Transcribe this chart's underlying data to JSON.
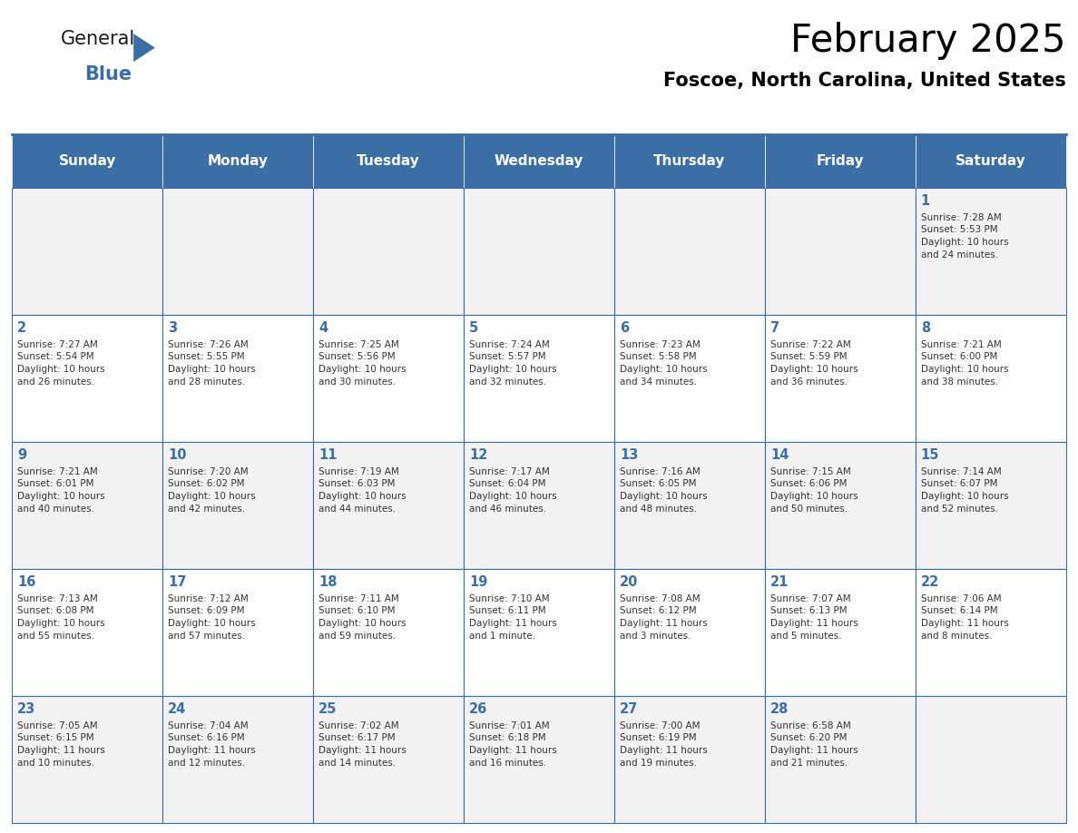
{
  "title": "February 2025",
  "subtitle": "Foscoe, North Carolina, United States",
  "header_bg_color": "#3A6EA5",
  "header_text_color": "#FFFFFF",
  "cell_bg_color_odd": "#F2F2F2",
  "cell_bg_color_even": "#FFFFFF",
  "grid_line_color": "#3A6EA5",
  "day_headers": [
    "Sunday",
    "Monday",
    "Tuesday",
    "Wednesday",
    "Thursday",
    "Friday",
    "Saturday"
  ],
  "title_color": "#000000",
  "subtitle_color": "#000000",
  "day_number_color": "#3A6EA5",
  "cell_text_color": "#333333",
  "weeks": [
    [
      {
        "day": null,
        "sunrise": null,
        "sunset": null,
        "daylight": null
      },
      {
        "day": null,
        "sunrise": null,
        "sunset": null,
        "daylight": null
      },
      {
        "day": null,
        "sunrise": null,
        "sunset": null,
        "daylight": null
      },
      {
        "day": null,
        "sunrise": null,
        "sunset": null,
        "daylight": null
      },
      {
        "day": null,
        "sunrise": null,
        "sunset": null,
        "daylight": null
      },
      {
        "day": null,
        "sunrise": null,
        "sunset": null,
        "daylight": null
      },
      {
        "day": 1,
        "sunrise": "7:28 AM",
        "sunset": "5:53 PM",
        "daylight": "10 hours\nand 24 minutes."
      }
    ],
    [
      {
        "day": 2,
        "sunrise": "7:27 AM",
        "sunset": "5:54 PM",
        "daylight": "10 hours\nand 26 minutes."
      },
      {
        "day": 3,
        "sunrise": "7:26 AM",
        "sunset": "5:55 PM",
        "daylight": "10 hours\nand 28 minutes."
      },
      {
        "day": 4,
        "sunrise": "7:25 AM",
        "sunset": "5:56 PM",
        "daylight": "10 hours\nand 30 minutes."
      },
      {
        "day": 5,
        "sunrise": "7:24 AM",
        "sunset": "5:57 PM",
        "daylight": "10 hours\nand 32 minutes."
      },
      {
        "day": 6,
        "sunrise": "7:23 AM",
        "sunset": "5:58 PM",
        "daylight": "10 hours\nand 34 minutes."
      },
      {
        "day": 7,
        "sunrise": "7:22 AM",
        "sunset": "5:59 PM",
        "daylight": "10 hours\nand 36 minutes."
      },
      {
        "day": 8,
        "sunrise": "7:21 AM",
        "sunset": "6:00 PM",
        "daylight": "10 hours\nand 38 minutes."
      }
    ],
    [
      {
        "day": 9,
        "sunrise": "7:21 AM",
        "sunset": "6:01 PM",
        "daylight": "10 hours\nand 40 minutes."
      },
      {
        "day": 10,
        "sunrise": "7:20 AM",
        "sunset": "6:02 PM",
        "daylight": "10 hours\nand 42 minutes."
      },
      {
        "day": 11,
        "sunrise": "7:19 AM",
        "sunset": "6:03 PM",
        "daylight": "10 hours\nand 44 minutes."
      },
      {
        "day": 12,
        "sunrise": "7:17 AM",
        "sunset": "6:04 PM",
        "daylight": "10 hours\nand 46 minutes."
      },
      {
        "day": 13,
        "sunrise": "7:16 AM",
        "sunset": "6:05 PM",
        "daylight": "10 hours\nand 48 minutes."
      },
      {
        "day": 14,
        "sunrise": "7:15 AM",
        "sunset": "6:06 PM",
        "daylight": "10 hours\nand 50 minutes."
      },
      {
        "day": 15,
        "sunrise": "7:14 AM",
        "sunset": "6:07 PM",
        "daylight": "10 hours\nand 52 minutes."
      }
    ],
    [
      {
        "day": 16,
        "sunrise": "7:13 AM",
        "sunset": "6:08 PM",
        "daylight": "10 hours\nand 55 minutes."
      },
      {
        "day": 17,
        "sunrise": "7:12 AM",
        "sunset": "6:09 PM",
        "daylight": "10 hours\nand 57 minutes."
      },
      {
        "day": 18,
        "sunrise": "7:11 AM",
        "sunset": "6:10 PM",
        "daylight": "10 hours\nand 59 minutes."
      },
      {
        "day": 19,
        "sunrise": "7:10 AM",
        "sunset": "6:11 PM",
        "daylight": "11 hours\nand 1 minute."
      },
      {
        "day": 20,
        "sunrise": "7:08 AM",
        "sunset": "6:12 PM",
        "daylight": "11 hours\nand 3 minutes."
      },
      {
        "day": 21,
        "sunrise": "7:07 AM",
        "sunset": "6:13 PM",
        "daylight": "11 hours\nand 5 minutes."
      },
      {
        "day": 22,
        "sunrise": "7:06 AM",
        "sunset": "6:14 PM",
        "daylight": "11 hours\nand 8 minutes."
      }
    ],
    [
      {
        "day": 23,
        "sunrise": "7:05 AM",
        "sunset": "6:15 PM",
        "daylight": "11 hours\nand 10 minutes."
      },
      {
        "day": 24,
        "sunrise": "7:04 AM",
        "sunset": "6:16 PM",
        "daylight": "11 hours\nand 12 minutes."
      },
      {
        "day": 25,
        "sunrise": "7:02 AM",
        "sunset": "6:17 PM",
        "daylight": "11 hours\nand 14 minutes."
      },
      {
        "day": 26,
        "sunrise": "7:01 AM",
        "sunset": "6:18 PM",
        "daylight": "11 hours\nand 16 minutes."
      },
      {
        "day": 27,
        "sunrise": "7:00 AM",
        "sunset": "6:19 PM",
        "daylight": "11 hours\nand 19 minutes."
      },
      {
        "day": 28,
        "sunrise": "6:58 AM",
        "sunset": "6:20 PM",
        "daylight": "11 hours\nand 21 minutes."
      },
      {
        "day": null,
        "sunrise": null,
        "sunset": null,
        "daylight": null
      }
    ]
  ]
}
